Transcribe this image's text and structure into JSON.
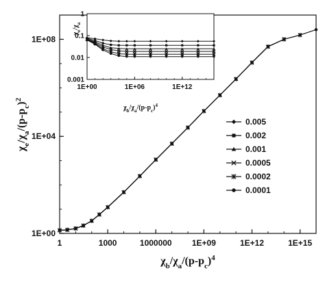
{
  "chart_data": [
    {
      "type": "line",
      "xscale": "log",
      "yscale": "log",
      "xlim": [
        1,
        1e+16
      ],
      "ylim": [
        1,
        1000000000.0
      ],
      "x_tick_values": [
        1,
        1000,
        1000000,
        1000000000.0,
        1000000000000.0,
        1000000000000000.0
      ],
      "x_tick_labels": [
        "1",
        "1000",
        "1000000",
        "1E+09",
        "1E+12",
        "1E+15"
      ],
      "y_tick_values": [
        1,
        10000,
        100000000
      ],
      "y_tick_labels": [
        "1E+00",
        "1E+04",
        "1E+08"
      ],
      "xlabel": {
        "base": "χ",
        "sub1": "b",
        "mid": "/χ",
        "sub2": "a",
        "paren": "/(p-p",
        "sub3": "c",
        "close": ")",
        "exp": "4"
      },
      "ylabel": {
        "base": "χ",
        "sub1": "e",
        "mid": "/χ",
        "sub2": "a",
        "paren": "/(p-p",
        "sub3": "c",
        "close": ")",
        "exp": "2"
      },
      "legend_position": "right",
      "series": [
        {
          "name": "0.005",
          "marker": "diamond",
          "x": [
            1,
            3,
            10,
            30,
            100,
            300,
            1000,
            10000,
            100000,
            1000000,
            10000000,
            100000000,
            1000000000.0,
            10000000000.0,
            100000000000.0,
            1000000000000.0
          ],
          "y": [
            1.35,
            1.4,
            1.6,
            2.1,
            3.3,
            6.0,
            12,
            50,
            230,
            1100,
            5000,
            23000,
            110000,
            500000,
            2300000,
            11000000
          ]
        },
        {
          "name": "0.002",
          "marker": "square",
          "x": [
            1,
            3,
            10,
            30,
            100,
            300,
            1000,
            10000,
            100000,
            1000000,
            10000000,
            100000000,
            1000000000.0,
            10000000000.0,
            100000000000.0,
            1000000000000.0,
            10000000000000.0
          ],
          "y": [
            1.35,
            1.4,
            1.6,
            2.1,
            3.3,
            6.0,
            12,
            50,
            230,
            1100,
            5000,
            23000,
            110000,
            500000,
            2300000,
            11000000,
            50000000
          ]
        },
        {
          "name": "0.001",
          "marker": "triangle",
          "x": [
            1,
            3,
            10,
            30,
            100,
            300,
            1000,
            10000,
            100000,
            1000000,
            10000000,
            100000000,
            1000000000.0,
            10000000000.0,
            100000000000.0,
            1000000000000.0,
            10000000000000.0,
            100000000000000.0
          ],
          "y": [
            1.35,
            1.4,
            1.6,
            2.1,
            3.3,
            6.0,
            12,
            50,
            230,
            1100,
            5000,
            23000,
            110000,
            500000,
            2300000,
            11000000,
            50000000,
            100000000
          ]
        },
        {
          "name": "0.0005",
          "marker": "x",
          "x": [
            1,
            3,
            10,
            30,
            100,
            300,
            1000,
            10000,
            100000,
            1000000,
            10000000,
            100000000,
            1000000000.0,
            10000000000.0,
            100000000000.0,
            1000000000000.0,
            10000000000000.0,
            100000000000000.0
          ],
          "y": [
            1.35,
            1.4,
            1.6,
            2.1,
            3.3,
            6.0,
            12,
            50,
            230,
            1100,
            5000,
            23000,
            110000,
            500000,
            2300000,
            11000000,
            50000000,
            100000000
          ]
        },
        {
          "name": "0.0002",
          "marker": "star",
          "x": [
            1,
            3,
            10,
            30,
            100,
            300,
            1000,
            10000,
            100000,
            1000000,
            10000000,
            100000000,
            1000000000.0,
            10000000000.0,
            100000000000.0,
            1000000000000.0,
            10000000000000.0,
            100000000000000.0,
            1000000000000000.0
          ],
          "y": [
            1.35,
            1.4,
            1.6,
            2.1,
            3.3,
            6.0,
            12,
            50,
            230,
            1100,
            5000,
            23000,
            110000,
            500000,
            2300000,
            11000000,
            50000000,
            100000000,
            150000000
          ]
        },
        {
          "name": "0.0001",
          "marker": "circle",
          "x": [
            1,
            3,
            10,
            30,
            100,
            300,
            1000,
            10000,
            100000,
            1000000,
            10000000,
            100000000,
            1000000000.0,
            10000000000.0,
            100000000000.0,
            1000000000000.0,
            10000000000000.0,
            100000000000000.0,
            1000000000000000.0,
            1e+16
          ],
          "y": [
            1.35,
            1.4,
            1.6,
            2.1,
            3.3,
            6.0,
            12,
            50,
            230,
            1100,
            5000,
            23000,
            110000,
            500000,
            2300000,
            11000000,
            50000000,
            100000000,
            150000000,
            250000000
          ]
        }
      ]
    },
    {
      "type": "line",
      "inset": true,
      "xscale": "log",
      "yscale": "log",
      "xlim": [
        1,
        1e+16
      ],
      "ylim": [
        0.001,
        1
      ],
      "x_tick_values": [
        1,
        1000000,
        1000000000000.0
      ],
      "x_tick_labels": [
        "1E+00",
        "1E+06",
        "1E+12"
      ],
      "y_tick_values": [
        0.001,
        0.01,
        0.1,
        1
      ],
      "y_tick_labels": [
        "0.001",
        "0.01",
        "0.1",
        "1"
      ],
      "xlabel": {
        "base": "χ",
        "sub1": "b",
        "mid": "/χ",
        "sub2": "a",
        "paren": "/(p-p",
        "sub3": "c",
        "close": ")",
        "exp": "4"
      },
      "ylabel": {
        "base": "χ",
        "sub1": "e",
        "mid": "/χ",
        "sub2": "a"
      },
      "series": [
        {
          "name": "0.005",
          "marker": "diamond",
          "x": [
            1,
            10,
            100,
            1000,
            10000,
            100000,
            1000000,
            100000000.0,
            10000000000.0,
            1000000000000.0,
            100000000000000.0,
            1e+16
          ],
          "y": [
            0.08,
            0.072,
            0.063,
            0.057,
            0.055,
            0.055,
            0.055,
            0.055,
            0.055,
            0.055,
            0.055,
            0.055
          ]
        },
        {
          "name": "0.002",
          "marker": "square",
          "x": [
            1,
            10,
            100,
            1000,
            10000,
            100000,
            1000000,
            100000000.0,
            10000000000.0,
            1000000000000.0,
            100000000000000.0,
            1e+16
          ],
          "y": [
            0.075,
            0.06,
            0.045,
            0.038,
            0.036,
            0.036,
            0.036,
            0.036,
            0.036,
            0.036,
            0.036,
            0.036
          ]
        },
        {
          "name": "0.001",
          "marker": "triangle",
          "x": [
            1,
            10,
            100,
            1000,
            10000,
            100000,
            1000000,
            100000000.0,
            10000000000.0,
            1000000000000.0,
            100000000000000.0,
            1e+16
          ],
          "y": [
            0.07,
            0.052,
            0.036,
            0.028,
            0.026,
            0.025,
            0.025,
            0.025,
            0.025,
            0.025,
            0.025,
            0.025
          ]
        },
        {
          "name": "0.0005",
          "marker": "x",
          "x": [
            1,
            10,
            100,
            1000,
            10000,
            100000,
            1000000,
            100000000.0,
            10000000000.0,
            1000000000000.0,
            100000000000000.0,
            1e+16
          ],
          "y": [
            0.068,
            0.047,
            0.03,
            0.023,
            0.02,
            0.019,
            0.019,
            0.019,
            0.019,
            0.019,
            0.019,
            0.019
          ]
        },
        {
          "name": "0.0002",
          "marker": "star",
          "x": [
            1,
            10,
            100,
            1000,
            10000,
            100000,
            1000000,
            100000000.0,
            10000000000.0,
            1000000000000.0,
            100000000000000.0,
            1e+16
          ],
          "y": [
            0.065,
            0.043,
            0.025,
            0.018,
            0.015,
            0.014,
            0.014,
            0.014,
            0.014,
            0.014,
            0.014,
            0.014
          ]
        },
        {
          "name": "0.0001",
          "marker": "circle",
          "x": [
            1,
            10,
            100,
            1000,
            10000,
            100000,
            1000000,
            100000000.0,
            10000000000.0,
            1000000000000.0,
            100000000000000.0,
            1e+16
          ],
          "y": [
            0.063,
            0.04,
            0.022,
            0.015,
            0.012,
            0.011,
            0.011,
            0.011,
            0.011,
            0.011,
            0.011,
            0.011
          ]
        }
      ]
    }
  ]
}
